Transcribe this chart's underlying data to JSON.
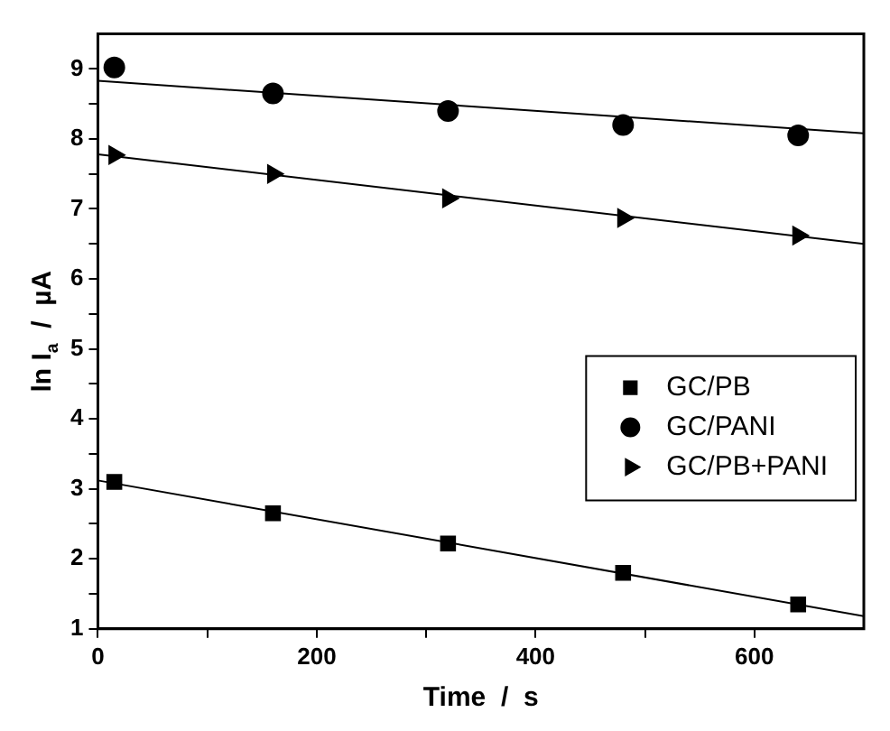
{
  "chart_data": {
    "type": "scatter",
    "xlabel": "Time  /  s",
    "ylabel": "ln I$_{a}$  /  µA",
    "xlim": [
      0,
      700
    ],
    "xticks": [
      0,
      {
        "value": 100,
        "label": null
      },
      200,
      {
        "value": 300,
        "label": null
      },
      400,
      {
        "value": 500,
        "label": null
      },
      600
    ],
    "ylim": [
      1,
      9.5
    ],
    "yticks": [
      1,
      {
        "value": 1.5,
        "label": null
      },
      2,
      {
        "value": 2.5,
        "label": null
      },
      3,
      {
        "value": 3.5,
        "label": null
      },
      4,
      {
        "value": 4.5,
        "label": null
      },
      5,
      {
        "value": 5.5,
        "label": null
      },
      6,
      {
        "value": 6.5,
        "label": null
      },
      7,
      {
        "value": 7.5,
        "label": null
      },
      8,
      {
        "value": 8.5,
        "label": null
      },
      9
    ],
    "legend": "right",
    "grid": false,
    "series": [
      {
        "name": "GC/PB",
        "color": "#000000",
        "marker": "square",
        "x": [
          15,
          160,
          320,
          480,
          640
        ],
        "values": [
          3.1,
          2.65,
          2.22,
          1.8,
          1.35
        ]
      },
      {
        "name": "GC/PANI",
        "color": "#000000",
        "marker": "circle",
        "x": [
          15,
          160,
          320,
          480,
          640
        ],
        "values": [
          9.02,
          8.65,
          8.4,
          8.2,
          8.05
        ]
      },
      {
        "name": "GC/PB+PANI",
        "color": "#000000",
        "marker": "triangle",
        "x": [
          15,
          160,
          320,
          480,
          640
        ],
        "values": [
          7.77,
          7.5,
          7.15,
          6.87,
          6.62
        ]
      },
      {
        "type": "line",
        "color": "#000000",
        "marker": "none",
        "x": [
          0,
          700
        ],
        "values": [
          3.12,
          1.18
        ]
      },
      {
        "type": "line",
        "color": "#000000",
        "marker": "none",
        "x": [
          0,
          700
        ],
        "values": [
          8.83,
          8.08
        ]
      },
      {
        "type": "line",
        "color": "#000000",
        "marker": "none",
        "x": [
          0,
          700
        ],
        "values": [
          7.78,
          6.5
        ]
      }
    ]
  }
}
